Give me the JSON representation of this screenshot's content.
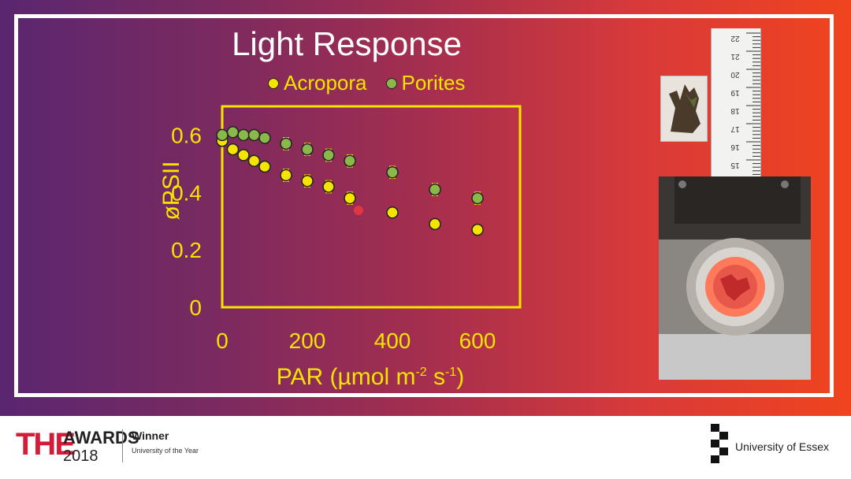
{
  "slide": {
    "title": "Light Response",
    "ylabel": "øPSII",
    "xlabel": "PAR (µmol m-2 s-1)"
  },
  "footer": {
    "the": "THE",
    "awards": "AWARDS",
    "year": "2018",
    "winner": "Winner",
    "university_of_year": "University of the Year",
    "university": "University of Essex"
  },
  "ruler_labels": [
    "22",
    "21",
    "20",
    "19",
    "18",
    "17",
    "16",
    "15"
  ],
  "colors": {
    "acropora": "#f5e300",
    "porites": "#8ab84a",
    "axis": "#f5e300"
  },
  "chart_data": {
    "type": "scatter",
    "title": "Light Response",
    "xlabel": "PAR (µmol m-2 s-1)",
    "ylabel": "øPSII",
    "xlim": [
      0,
      700
    ],
    "ylim": [
      0,
      0.7
    ],
    "xticks": [
      "0",
      "200",
      "400",
      "600"
    ],
    "yticks": [
      "0",
      "0.2",
      "0.4",
      "0.6"
    ],
    "grid": false,
    "legend": "top",
    "series": [
      {
        "name": "Acropora",
        "x": [
          0,
          25,
          50,
          75,
          100,
          150,
          200,
          250,
          300,
          400,
          500,
          600
        ],
        "y": [
          0.58,
          0.55,
          0.53,
          0.51,
          0.49,
          0.46,
          0.44,
          0.42,
          0.38,
          0.33,
          0.29,
          0.27
        ],
        "err": [
          0.01,
          0.01,
          0.01,
          0.01,
          0.01,
          0.02,
          0.02,
          0.02,
          0.02,
          0.01,
          0.01,
          0.01
        ]
      },
      {
        "name": "Porites",
        "x": [
          0,
          25,
          50,
          75,
          100,
          150,
          200,
          250,
          300,
          400,
          500,
          600
        ],
        "y": [
          0.6,
          0.61,
          0.6,
          0.6,
          0.59,
          0.57,
          0.55,
          0.53,
          0.51,
          0.47,
          0.41,
          0.38
        ],
        "err": [
          0.01,
          0.01,
          0.01,
          0.01,
          0.01,
          0.02,
          0.02,
          0.02,
          0.02,
          0.02,
          0.02,
          0.02
        ]
      }
    ]
  }
}
